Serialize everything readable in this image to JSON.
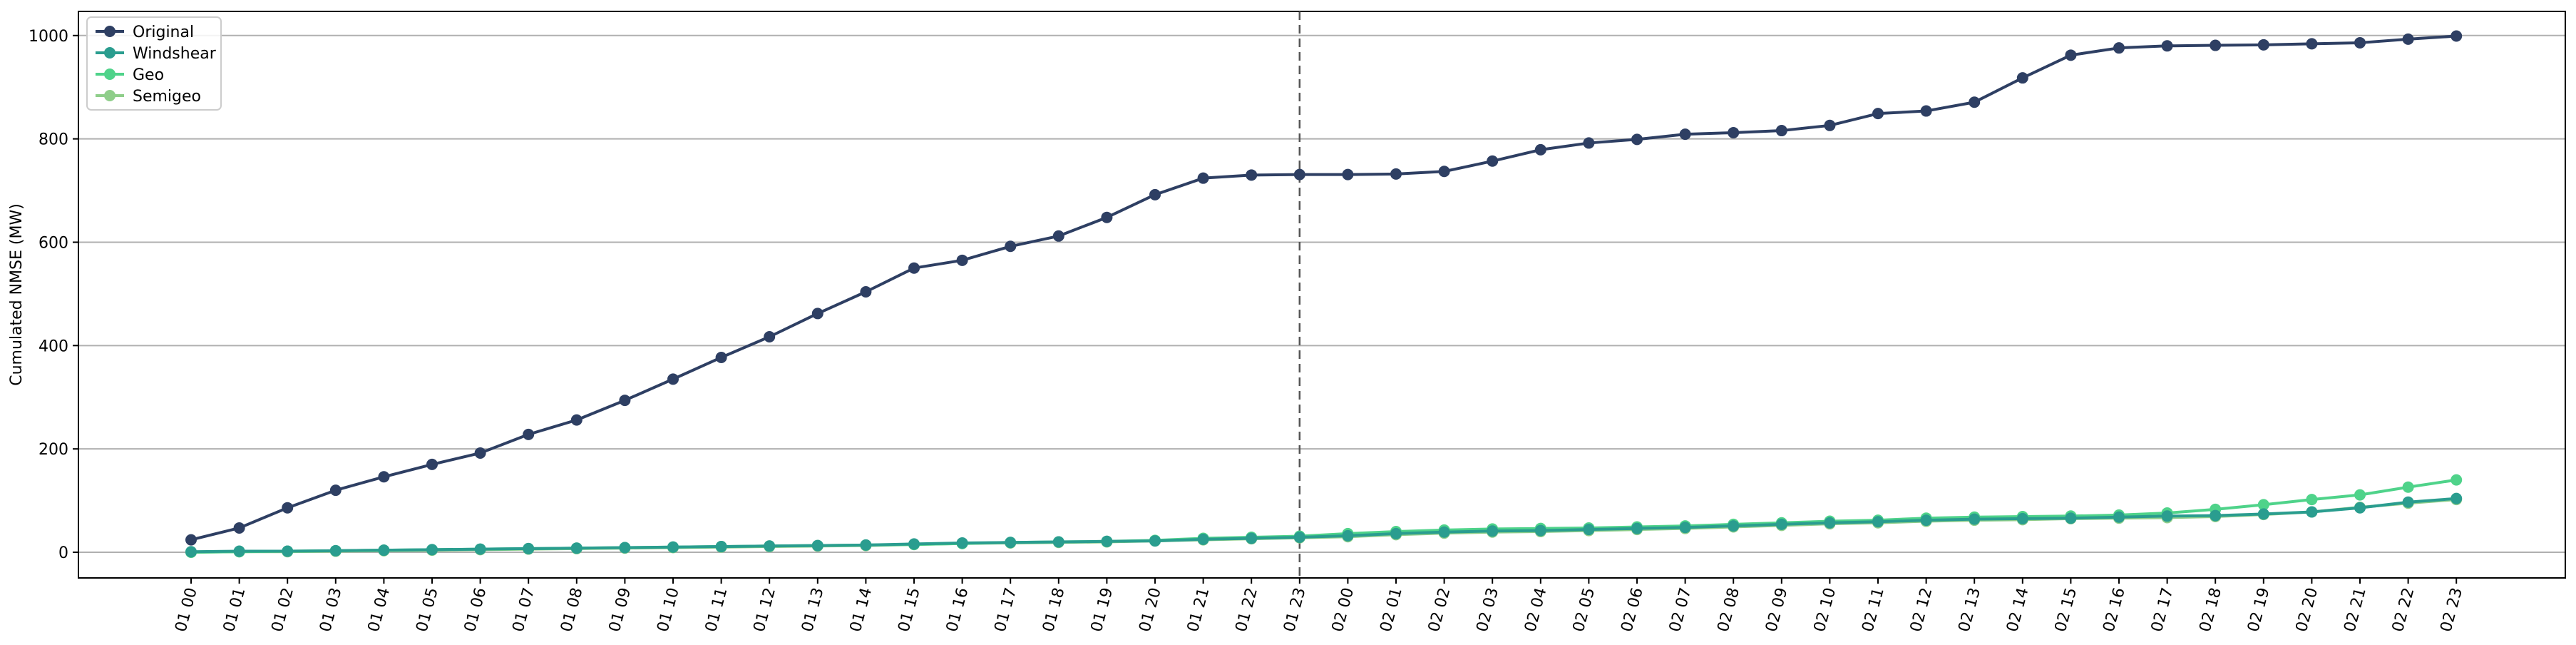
{
  "chart_data": {
    "type": "line",
    "title": "",
    "xlabel": "",
    "ylabel": "Cumulated NMSE (MW)",
    "ylim": [
      -50,
      1030
    ],
    "yticks": [
      0,
      200,
      400,
      600,
      800,
      1000
    ],
    "grid": "horizontal",
    "legend_position": "top-left",
    "vline_category": "01 23",
    "categories": [
      "01 00",
      "01 01",
      "01 02",
      "01 03",
      "01 04",
      "01 05",
      "01 06",
      "01 07",
      "01 08",
      "01 09",
      "01 10",
      "01 11",
      "01 12",
      "01 13",
      "01 14",
      "01 15",
      "01 16",
      "01 17",
      "01 18",
      "01 19",
      "01 20",
      "01 21",
      "01 22",
      "01 23",
      "02 00",
      "02 01",
      "02 02",
      "02 03",
      "02 04",
      "02 05",
      "02 06",
      "02 07",
      "02 08",
      "02 09",
      "02 10",
      "02 11",
      "02 12",
      "02 13",
      "02 14",
      "02 15",
      "02 16",
      "02 17",
      "02 18",
      "02 19",
      "02 20",
      "02 21",
      "02 22",
      "02 23"
    ],
    "series": [
      {
        "name": "Original",
        "color": "#2e3f63",
        "values": [
          24,
          47,
          86,
          120,
          146,
          170,
          192,
          228,
          256,
          294,
          335,
          377,
          417,
          462,
          504,
          550,
          565,
          592,
          612,
          648,
          692,
          724,
          730,
          731,
          731,
          732,
          737,
          757,
          779,
          792,
          799,
          809,
          812,
          816,
          826,
          849,
          854,
          871,
          918,
          962,
          976,
          980,
          981,
          982,
          984,
          986,
          993,
          999
        ]
      },
      {
        "name": "Windshear",
        "color": "#2a9d8f",
        "values": [
          1,
          2,
          2,
          3,
          4,
          5,
          6,
          7,
          8,
          9,
          10,
          11,
          12,
          13,
          14,
          16,
          18,
          19,
          20,
          21,
          22,
          25,
          27,
          29,
          32,
          36,
          39,
          41,
          42,
          44,
          46,
          48,
          51,
          54,
          57,
          59,
          62,
          64,
          65,
          66,
          68,
          70,
          71,
          74,
          78,
          86,
          97,
          104
        ]
      },
      {
        "name": "Geo",
        "color": "#4fd38a",
        "values": [
          0,
          1,
          2,
          3,
          4,
          5,
          6,
          7,
          8,
          9,
          10,
          11,
          12,
          13,
          14,
          15,
          17,
          19,
          20,
          21,
          23,
          27,
          29,
          31,
          36,
          40,
          43,
          45,
          46,
          47,
          49,
          51,
          54,
          57,
          60,
          62,
          66,
          68,
          69,
          70,
          72,
          76,
          83,
          92,
          102,
          111,
          126,
          140
        ]
      },
      {
        "name": "Semigeo",
        "color": "#8fce8a",
        "values": [
          0,
          1,
          1,
          2,
          3,
          4,
          5,
          6,
          7,
          8,
          9,
          10,
          11,
          12,
          13,
          15,
          17,
          18,
          19,
          20,
          22,
          24,
          26,
          28,
          30,
          34,
          37,
          39,
          40,
          42,
          44,
          46,
          49,
          52,
          55,
          57,
          60,
          62,
          63,
          65,
          66,
          67,
          69,
          73,
          78,
          87,
          95,
          102
        ]
      }
    ]
  }
}
